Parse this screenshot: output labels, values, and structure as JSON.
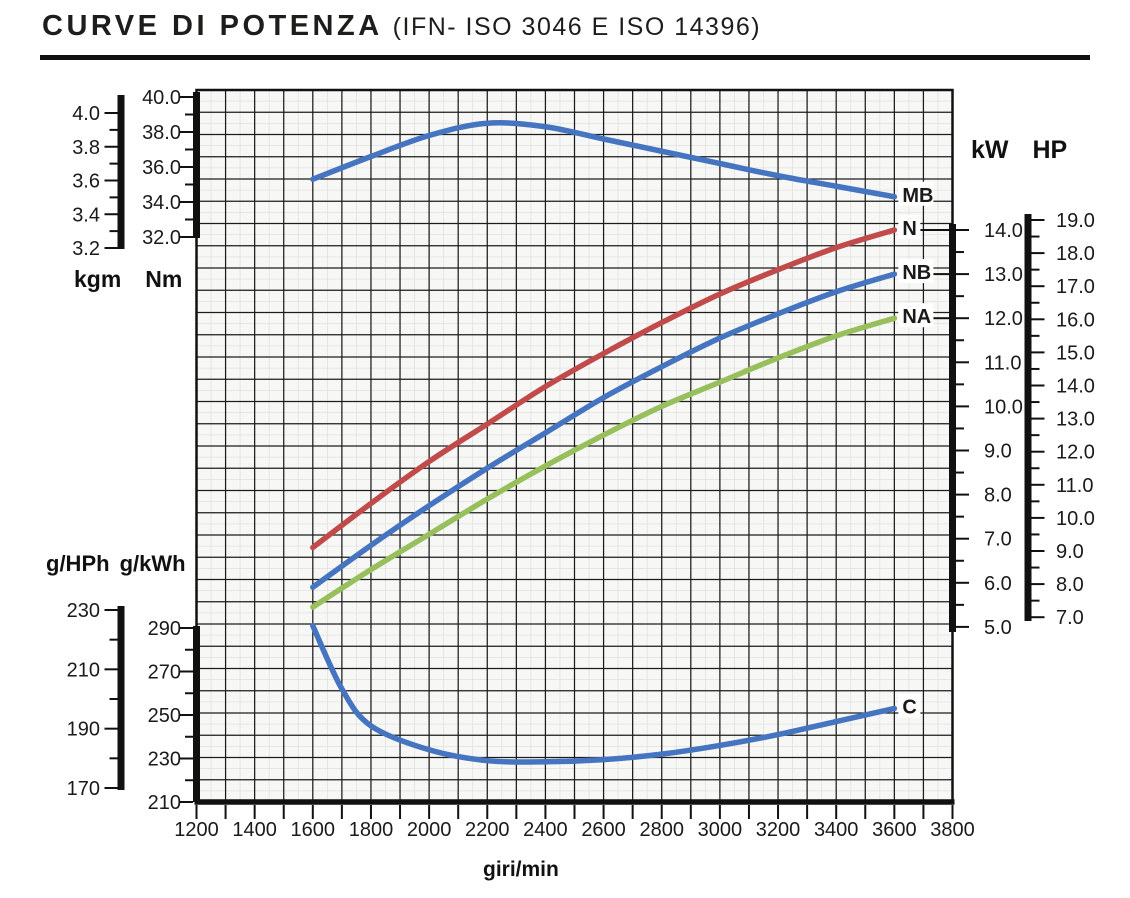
{
  "header": {
    "title": "CURVE DI POTENZA",
    "subtitle": "(IFN- ISO 3046 E ISO 14396)"
  },
  "labels": {
    "kgm": "kgm",
    "nm": "Nm",
    "kw": "kW",
    "hp": "HP",
    "ghph": "g/HPh",
    "gkwh": "g/kWh",
    "x_axis": "giri/min"
  },
  "chart_data": {
    "type": "line",
    "title": "CURVE DI POTENZA (IFN- ISO 3046 E ISO 14396)",
    "xlabel": "giri/min",
    "x_range": [
      1200,
      3800
    ],
    "grid": true,
    "x_axis": {
      "ticks": [
        "1200",
        "1400",
        "1600",
        "1800",
        "2000",
        "2200",
        "2400",
        "2600",
        "2800",
        "3000",
        "3200",
        "3400",
        "3600",
        "3800"
      ]
    },
    "axes": {
      "torque": {
        "units": [
          "kgm",
          "Nm"
        ],
        "kgm_ticks": [
          "4.0",
          "3.8",
          "3.6",
          "3.4",
          "3.2"
        ],
        "nm_ticks": [
          "40.0",
          "38.0",
          "36.0",
          "34.0",
          "32.0"
        ]
      },
      "power": {
        "units": [
          "kW",
          "HP"
        ],
        "kw_ticks": [
          "14.0",
          "13.0",
          "12.0",
          "11.0",
          "10.0",
          "9.0",
          "8.0",
          "7.0",
          "6.0",
          "5.0"
        ],
        "hp_ticks": [
          "19.0",
          "18.0",
          "17.0",
          "16.0",
          "15.0",
          "14.0",
          "13.0",
          "12.0",
          "11.0",
          "10.0",
          "9.0",
          "8.0",
          "7.0"
        ]
      },
      "consumption": {
        "units": [
          "g/HPh",
          "g/kWh"
        ],
        "ghph_ticks": [
          "230",
          "210",
          "190",
          "170"
        ],
        "gkwh_ticks": [
          "290",
          "270",
          "250",
          "230",
          "210"
        ]
      }
    },
    "series": [
      {
        "name": "MB",
        "axis": "Nm",
        "unit": "Nm",
        "color": "#4574c1",
        "rpm": [
          1600,
          1800,
          2000,
          2200,
          2400,
          2600,
          2800,
          3000,
          3200,
          3400,
          3600
        ],
        "values": [
          35.3,
          36.6,
          37.8,
          38.5,
          38.3,
          37.6,
          36.9,
          36.2,
          35.5,
          34.9,
          34.3
        ]
      },
      {
        "name": "N",
        "axis": "kW",
        "unit": "kW",
        "color": "#c04b4a",
        "rpm": [
          1600,
          1800,
          2000,
          2200,
          2400,
          2600,
          2800,
          3000,
          3200,
          3400,
          3600
        ],
        "values": [
          6.8,
          7.8,
          8.75,
          9.6,
          10.45,
          11.2,
          11.9,
          12.55,
          13.1,
          13.6,
          14.0
        ]
      },
      {
        "name": "NB",
        "axis": "kW",
        "unit": "kW",
        "color": "#4574c1",
        "rpm": [
          1600,
          1800,
          2000,
          2200,
          2400,
          2600,
          2800,
          3000,
          3200,
          3400,
          3600
        ],
        "values": [
          5.9,
          6.85,
          7.75,
          8.6,
          9.4,
          10.2,
          10.9,
          11.55,
          12.1,
          12.6,
          13.0
        ]
      },
      {
        "name": "NA",
        "axis": "kW",
        "unit": "kW",
        "color": "#97c05c",
        "rpm": [
          1600,
          1800,
          2000,
          2200,
          2400,
          2600,
          2800,
          3000,
          3200,
          3400,
          3600
        ],
        "values": [
          5.45,
          6.3,
          7.1,
          7.9,
          8.65,
          9.35,
          10.0,
          10.55,
          11.1,
          11.6,
          12.0
        ]
      },
      {
        "name": "C",
        "axis": "gkWh",
        "unit": "g/kWh",
        "color": "#4574c1",
        "rpm": [
          1600,
          1700,
          1800,
          2000,
          2200,
          2400,
          2600,
          2800,
          3000,
          3200,
          3400,
          3600
        ],
        "values": [
          291,
          262,
          245,
          234,
          229,
          228.5,
          229.5,
          232,
          236,
          241,
          247,
          253
        ]
      }
    ]
  }
}
